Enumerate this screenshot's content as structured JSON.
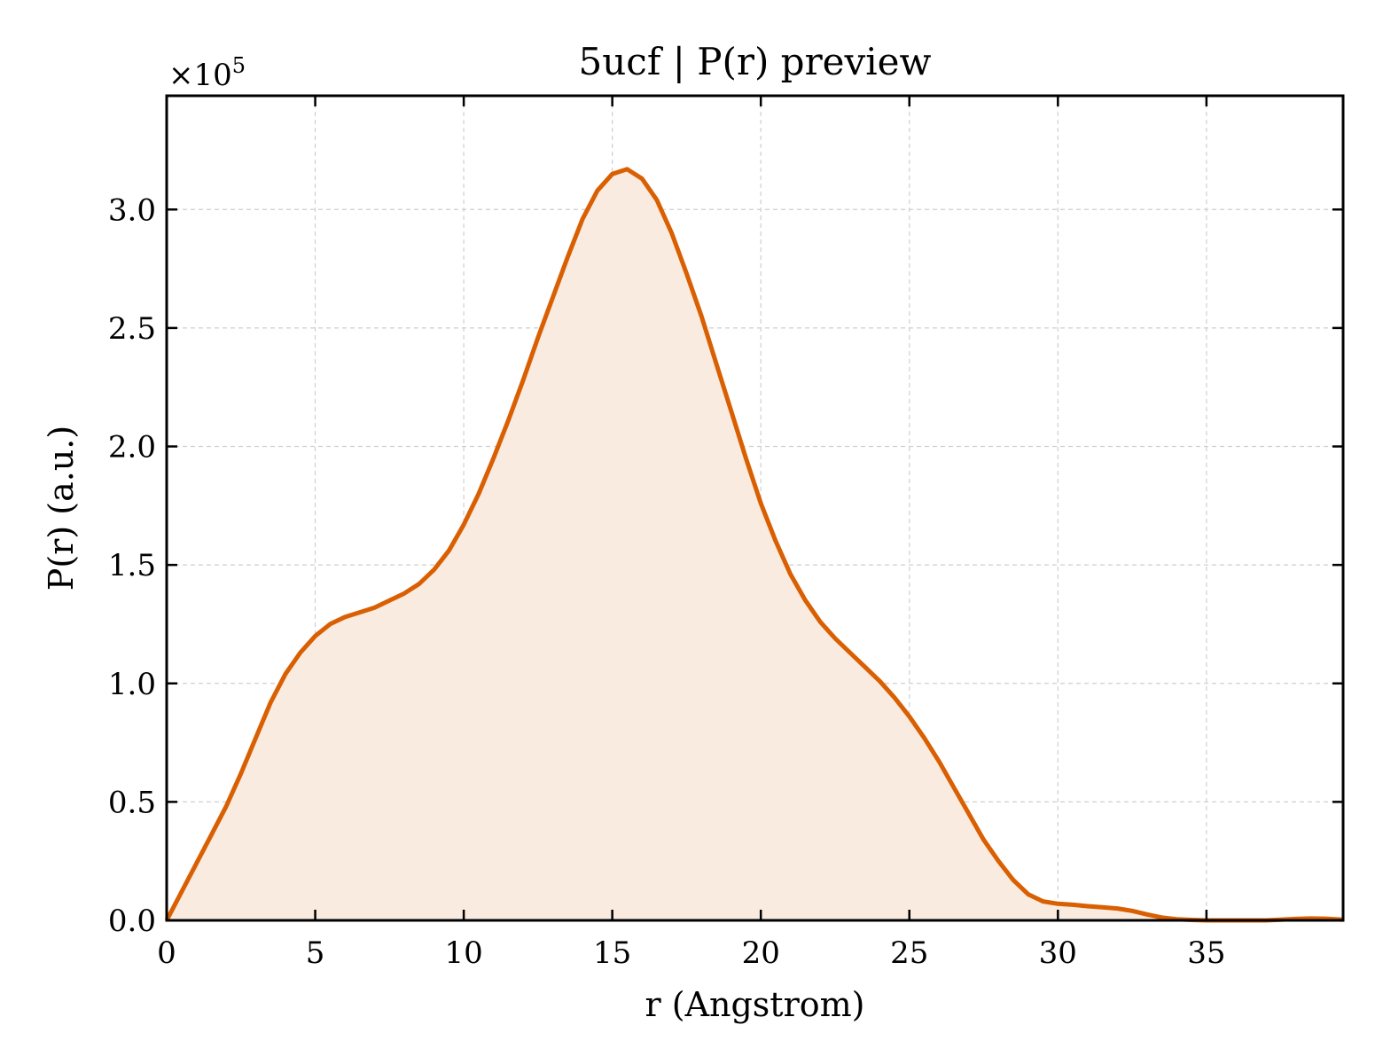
{
  "chart_data": {
    "type": "area",
    "title": "5ucf | P(r) preview",
    "xlabel": "r (Angstrom)",
    "ylabel": "P(r) (a.u.)",
    "y_offset_label": "×10",
    "y_offset_exponent": "5",
    "xlim": [
      0,
      39.6
    ],
    "ylim": [
      0,
      3.48
    ],
    "y_unit_multiplier": 100000,
    "x_ticks": [
      0,
      5,
      10,
      15,
      20,
      25,
      30,
      35
    ],
    "x_tick_labels": [
      "0",
      "5",
      "10",
      "15",
      "20",
      "25",
      "30",
      "35"
    ],
    "y_ticks": [
      0,
      0.5,
      1.0,
      1.5,
      2.0,
      2.5,
      3.0
    ],
    "y_tick_labels": [
      "0.0",
      "0.5",
      "1.0",
      "1.5",
      "2.0",
      "2.5",
      "3.0"
    ],
    "grid": true,
    "line_color": "#d95f02",
    "fill_color": "#f9ebe0",
    "series": [
      {
        "x": [
          0,
          0.5,
          1,
          1.5,
          2,
          2.5,
          3,
          3.5,
          4,
          4.5,
          5,
          5.5,
          6,
          6.5,
          7,
          7.5,
          8,
          8.5,
          9,
          9.5,
          10,
          10.5,
          11,
          11.5,
          12,
          12.5,
          13,
          13.5,
          14,
          14.5,
          15,
          15.5,
          16,
          16.5,
          17,
          17.5,
          18,
          18.5,
          19,
          19.5,
          20,
          20.5,
          21,
          21.5,
          22,
          22.5,
          23,
          23.5,
          24,
          24.5,
          25,
          25.5,
          26,
          26.5,
          27,
          27.5,
          28,
          28.5,
          29,
          29.5,
          30,
          30.5,
          31,
          31.5,
          32,
          32.5,
          33,
          33.5,
          34,
          34.5,
          35,
          35.5,
          36,
          36.5,
          37,
          37.5,
          38,
          38.5,
          39,
          39.6
        ],
        "y": [
          0,
          0.12,
          0.24,
          0.36,
          0.48,
          0.62,
          0.77,
          0.92,
          1.04,
          1.13,
          1.2,
          1.25,
          1.28,
          1.3,
          1.32,
          1.35,
          1.38,
          1.42,
          1.48,
          1.56,
          1.67,
          1.8,
          1.95,
          2.11,
          2.28,
          2.46,
          2.63,
          2.8,
          2.96,
          3.08,
          3.15,
          3.17,
          3.13,
          3.04,
          2.9,
          2.73,
          2.55,
          2.35,
          2.15,
          1.95,
          1.76,
          1.6,
          1.46,
          1.35,
          1.26,
          1.19,
          1.13,
          1.07,
          1.01,
          0.94,
          0.86,
          0.77,
          0.67,
          0.56,
          0.45,
          0.34,
          0.25,
          0.17,
          0.11,
          0.08,
          0.07,
          0.066,
          0.06,
          0.055,
          0.05,
          0.04,
          0.025,
          0.012,
          0.005,
          0.002,
          0,
          0,
          0,
          0,
          0,
          0.003,
          0.006,
          0.008,
          0.007,
          0.003
        ]
      }
    ]
  }
}
